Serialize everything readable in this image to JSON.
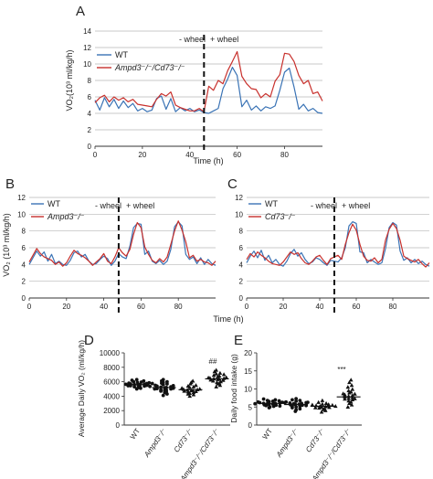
{
  "panel_letters": [
    "A",
    "B",
    "C",
    "D",
    "E"
  ],
  "colors": {
    "wt": "#3a73b5",
    "ko": "#c8302c",
    "grid": "#b8b8b8",
    "axis": "#333333",
    "dot": "#111111"
  },
  "chart_data": [
    {
      "type": "line",
      "panel": "A",
      "xlabel": "Time (h)",
      "ylabel": "VO₂(10³ ml/kg/h)",
      "xlim": [
        0,
        96
      ],
      "ylim": [
        0,
        14
      ],
      "xticks": [
        "0",
        "20",
        "40",
        "60",
        "80"
      ],
      "yticks": [
        "0",
        "2",
        "4",
        "6",
        "8",
        "10",
        "12",
        "14"
      ],
      "grid": "horizontal",
      "legend_position": "top-left",
      "annotations": {
        "left": "- wheel",
        "right": "+ wheel",
        "divider_x": 46
      },
      "series": [
        {
          "name": "WT",
          "color": "#3a73b5",
          "x": [
            0,
            2,
            4,
            6,
            8,
            10,
            12,
            14,
            16,
            18,
            20,
            22,
            24,
            26,
            28,
            30,
            32,
            34,
            36,
            38,
            40,
            42,
            44,
            46,
            48,
            50,
            52,
            54,
            56,
            58,
            60,
            62,
            64,
            66,
            68,
            70,
            72,
            74,
            76,
            78,
            80,
            82,
            84,
            86,
            88,
            90,
            92,
            94,
            96
          ],
          "values": [
            5.6,
            4.4,
            5.9,
            4.8,
            5.7,
            4.6,
            5.5,
            4.7,
            5.2,
            4.3,
            4.6,
            4.2,
            4.4,
            5.8,
            6.1,
            4.5,
            5.8,
            4.2,
            4.7,
            4.3,
            4.6,
            4.2,
            4.4,
            4.1,
            4.0,
            4.3,
            4.6,
            7.0,
            8.2,
            9.6,
            8.6,
            4.8,
            5.6,
            4.4,
            4.9,
            4.3,
            4.8,
            4.6,
            4.9,
            6.8,
            9.0,
            9.5,
            7.2,
            4.5,
            5.1,
            4.3,
            4.6,
            4.1,
            4.0
          ]
        },
        {
          "name": "Ampd3⁻/⁻/Cd73⁻/⁻",
          "color": "#c8302c",
          "x": [
            0,
            2,
            4,
            6,
            8,
            10,
            12,
            14,
            16,
            18,
            20,
            22,
            24,
            26,
            28,
            30,
            32,
            34,
            36,
            38,
            40,
            42,
            44,
            46,
            48,
            50,
            52,
            54,
            56,
            58,
            60,
            62,
            64,
            66,
            68,
            70,
            72,
            74,
            76,
            78,
            80,
            82,
            84,
            86,
            88,
            90,
            92,
            94,
            96
          ],
          "values": [
            5.3,
            5.9,
            6.2,
            5.4,
            6.0,
            5.6,
            5.9,
            5.4,
            5.7,
            5.1,
            5.0,
            4.9,
            4.8,
            5.7,
            6.4,
            6.1,
            6.6,
            5.0,
            4.7,
            4.5,
            4.3,
            4.3,
            4.6,
            4.2,
            7.3,
            6.8,
            8.0,
            7.6,
            9.2,
            10.3,
            11.5,
            8.5,
            7.6,
            7.0,
            6.9,
            5.9,
            6.4,
            6.0,
            7.9,
            8.7,
            11.3,
            11.2,
            10.3,
            8.6,
            7.6,
            8.0,
            6.4,
            6.6,
            5.5
          ]
        }
      ]
    },
    {
      "type": "line",
      "panel": "B",
      "xlabel": "Time (h)",
      "ylabel": "VO₂ (10³ ml/kg/h)",
      "xlim": [
        0,
        100
      ],
      "ylim": [
        0,
        12
      ],
      "xticks": [
        "0",
        "20",
        "40",
        "60",
        "80"
      ],
      "yticks": [
        "0",
        "2",
        "4",
        "6",
        "8",
        "10",
        "12"
      ],
      "grid": "horizontal",
      "legend_position": "top-left",
      "annotations": {
        "left": "- wheel",
        "right": "+ wheel",
        "divider_x": 48
      },
      "series": [
        {
          "name": "WT",
          "color": "#3a73b5",
          "x": [
            0,
            2,
            4,
            6,
            8,
            10,
            12,
            14,
            16,
            18,
            20,
            22,
            24,
            26,
            28,
            30,
            32,
            34,
            36,
            38,
            40,
            42,
            44,
            46,
            48,
            50,
            52,
            54,
            56,
            58,
            60,
            62,
            64,
            66,
            68,
            70,
            72,
            74,
            76,
            78,
            80,
            82,
            84,
            86,
            88,
            90,
            92,
            94,
            96,
            98,
            100
          ],
          "values": [
            4.0,
            4.8,
            5.6,
            5.0,
            5.5,
            4.4,
            5.2,
            4.1,
            4.4,
            4.0,
            3.9,
            4.5,
            5.4,
            5.6,
            4.9,
            5.2,
            4.4,
            4.0,
            4.1,
            4.6,
            5.0,
            4.7,
            3.9,
            4.4,
            5.3,
            4.9,
            4.7,
            6.2,
            8.4,
            8.9,
            8.8,
            5.2,
            5.6,
            4.4,
            4.1,
            4.5,
            4.0,
            4.4,
            5.8,
            8.5,
            9.1,
            8.6,
            5.2,
            4.6,
            4.9,
            4.1,
            4.8,
            4.0,
            4.6,
            4.1,
            3.9
          ]
        },
        {
          "name": "Ampd3⁻/⁻",
          "color": "#c8302c",
          "x": [
            0,
            2,
            4,
            6,
            8,
            10,
            12,
            14,
            16,
            18,
            20,
            22,
            24,
            26,
            28,
            30,
            32,
            34,
            36,
            38,
            40,
            42,
            44,
            46,
            48,
            50,
            52,
            54,
            56,
            58,
            60,
            62,
            64,
            66,
            68,
            70,
            72,
            74,
            76,
            78,
            80,
            82,
            84,
            86,
            88,
            90,
            92,
            94,
            96,
            98,
            100
          ],
          "values": [
            4.3,
            5.1,
            5.9,
            5.3,
            4.9,
            4.7,
            4.5,
            4.0,
            4.3,
            3.8,
            4.2,
            5.0,
            5.7,
            5.3,
            5.1,
            4.8,
            4.4,
            3.9,
            4.3,
            4.7,
            5.3,
            4.4,
            4.1,
            4.9,
            6.0,
            5.4,
            5.0,
            5.8,
            7.6,
            9.0,
            8.4,
            6.1,
            5.2,
            4.5,
            4.2,
            4.7,
            4.3,
            4.9,
            6.4,
            8.0,
            9.2,
            8.1,
            6.7,
            4.8,
            5.1,
            4.4,
            4.6,
            4.3,
            4.2,
            3.9,
            4.4
          ]
        }
      ]
    },
    {
      "type": "line",
      "panel": "C",
      "xlabel": "Time (h)",
      "ylabel": "",
      "xlim": [
        0,
        100
      ],
      "ylim": [
        0,
        12
      ],
      "xticks": [
        "0",
        "20",
        "40",
        "60",
        "80"
      ],
      "yticks": [
        "0",
        "2",
        "4",
        "6",
        "8",
        "10",
        "12"
      ],
      "grid": "horizontal",
      "legend_position": "top-left",
      "annotations": {
        "left": "- wheel",
        "right": "+ wheel",
        "divider_x": 48
      },
      "series": [
        {
          "name": "WT",
          "color": "#3a73b5",
          "x": [
            0,
            2,
            4,
            6,
            8,
            10,
            12,
            14,
            16,
            18,
            20,
            22,
            24,
            26,
            28,
            30,
            32,
            34,
            36,
            38,
            40,
            42,
            44,
            46,
            48,
            50,
            52,
            54,
            56,
            58,
            60,
            62,
            64,
            66,
            68,
            70,
            72,
            74,
            76,
            78,
            80,
            82,
            84,
            86,
            88,
            90,
            92,
            94,
            96,
            98,
            100
          ],
          "values": [
            4.2,
            5.0,
            5.6,
            4.8,
            5.7,
            4.5,
            5.1,
            4.2,
            4.6,
            4.0,
            3.8,
            4.4,
            5.3,
            5.8,
            5.0,
            5.4,
            4.6,
            4.1,
            4.3,
            4.8,
            4.6,
            4.2,
            3.9,
            4.5,
            4.4,
            4.3,
            4.8,
            6.0,
            8.6,
            9.1,
            8.9,
            5.5,
            5.4,
            4.2,
            4.6,
            4.3,
            4.0,
            4.2,
            5.9,
            8.4,
            9.0,
            8.7,
            5.6,
            4.5,
            4.8,
            4.2,
            4.6,
            4.1,
            4.4,
            4.0,
            3.8
          ]
        },
        {
          "name": "Cd73⁻/⁻",
          "color": "#c8302c",
          "x": [
            0,
            2,
            4,
            6,
            8,
            10,
            12,
            14,
            16,
            18,
            20,
            22,
            24,
            26,
            28,
            30,
            32,
            34,
            36,
            38,
            40,
            42,
            44,
            46,
            48,
            50,
            52,
            54,
            56,
            58,
            60,
            62,
            64,
            66,
            68,
            70,
            72,
            74,
            76,
            78,
            80,
            82,
            84,
            86,
            88,
            90,
            92,
            94,
            96,
            98,
            100
          ],
          "values": [
            4.6,
            5.3,
            4.9,
            5.5,
            5.1,
            4.8,
            4.4,
            4.1,
            4.0,
            3.9,
            4.3,
            4.9,
            5.5,
            5.2,
            5.4,
            4.7,
            4.2,
            4.0,
            4.4,
            4.9,
            5.1,
            4.5,
            4.0,
            4.7,
            4.9,
            5.1,
            4.6,
            6.4,
            7.8,
            8.8,
            8.1,
            6.4,
            5.0,
            4.5,
            4.4,
            4.8,
            4.2,
            4.6,
            6.9,
            8.2,
            8.9,
            8.3,
            6.9,
            5.0,
            4.7,
            4.5,
            4.3,
            4.6,
            4.1,
            3.7,
            4.2
          ]
        }
      ]
    },
    {
      "type": "scatter",
      "panel": "D",
      "ylabel": "Average Daily VO₂ (ml/kg/h)",
      "ylim": [
        0,
        10000
      ],
      "yticks": [
        "0",
        "2000",
        "4000",
        "6000",
        "8000",
        "10000"
      ],
      "categories": [
        "WT",
        "Ampd3⁻/⁻",
        "Cd73⁻/⁻",
        "Ampd3⁻/⁻/Cd73⁻/⁻"
      ],
      "means": [
        5600,
        5200,
        4900,
        6400
      ],
      "markers": [
        "circle",
        "circle",
        "triangle",
        "triangle"
      ],
      "significance": [
        "",
        "",
        "",
        "##"
      ],
      "series": [
        {
          "category": "WT",
          "values": [
            5000,
            5100,
            5200,
            5300,
            5300,
            5400,
            5450,
            5500,
            5550,
            5600,
            5600,
            5650,
            5700,
            5750,
            5800,
            5850,
            5900,
            5950,
            6000,
            6100,
            6200,
            6300,
            5450,
            5650,
            5750,
            5350
          ]
        },
        {
          "category": "Ampd3⁻/⁻",
          "values": [
            4100,
            4300,
            4500,
            4600,
            4700,
            4800,
            4850,
            4900,
            5000,
            5050,
            5100,
            5150,
            5200,
            5250,
            5300,
            5400,
            5450,
            5500,
            5600,
            5700,
            5800,
            5900,
            6000,
            6100,
            6300,
            5000
          ]
        },
        {
          "category": "Cd73⁻/⁻",
          "values": [
            4000,
            4200,
            4300,
            4400,
            4500,
            4600,
            4650,
            4700,
            4750,
            4800,
            4850,
            4900,
            4950,
            5000,
            5100,
            5200,
            5300,
            5400,
            5500,
            5700,
            5900,
            6100
          ]
        },
        {
          "category": "Ampd3⁻/⁻/Cd73⁻/⁻",
          "values": [
            5300,
            5500,
            5700,
            5800,
            5900,
            6000,
            6100,
            6200,
            6300,
            6350,
            6400,
            6450,
            6500,
            6600,
            6700,
            6800,
            6900,
            7000,
            7100,
            7200,
            7400,
            7600,
            6250,
            6550
          ]
        }
      ]
    },
    {
      "type": "scatter",
      "panel": "E",
      "ylabel": "Daily food intake (g)",
      "ylim": [
        0,
        20
      ],
      "yticks": [
        "0",
        "5",
        "10",
        "15",
        "20"
      ],
      "categories": [
        "WT",
        "Ampd3⁻/⁻",
        "Cd73⁻/⁻",
        "Ampd3⁻/⁻/Cd73⁻/⁻"
      ],
      "means": [
        6.0,
        5.7,
        5.2,
        7.8
      ],
      "markers": [
        "circle",
        "circle",
        "triangle",
        "triangle"
      ],
      "significance": [
        "",
        "",
        "",
        "***"
      ],
      "series": [
        {
          "category": "WT",
          "values": [
            4.8,
            5.0,
            5.2,
            5.4,
            5.5,
            5.6,
            5.7,
            5.8,
            5.9,
            6.0,
            6.0,
            6.1,
            6.2,
            6.3,
            6.4,
            6.5,
            6.6,
            6.8,
            7.0,
            7.2,
            5.3,
            6.2,
            6.7,
            5.9
          ]
        },
        {
          "category": "Ampd3⁻/⁻",
          "values": [
            3.8,
            4.2,
            4.5,
            4.8,
            5.0,
            5.2,
            5.3,
            5.5,
            5.6,
            5.7,
            5.8,
            5.9,
            6.0,
            6.1,
            6.2,
            6.4,
            6.6,
            6.8,
            7.0,
            7.3,
            5.4,
            6.3
          ]
        },
        {
          "category": "Cd73⁻/⁻",
          "values": [
            3.6,
            4.0,
            4.3,
            4.5,
            4.7,
            4.9,
            5.0,
            5.1,
            5.2,
            5.3,
            5.4,
            5.5,
            5.6,
            5.8,
            6.0,
            6.3,
            6.8,
            5.2,
            4.8,
            5.7
          ]
        },
        {
          "category": "Ampd3⁻/⁻/Cd73⁻/⁻",
          "values": [
            5.0,
            5.6,
            6.0,
            6.4,
            6.7,
            7.0,
            7.2,
            7.4,
            7.6,
            7.8,
            8.0,
            8.2,
            8.4,
            8.6,
            8.9,
            9.2,
            9.5,
            9.9,
            10.5,
            11.0,
            11.8,
            12.5,
            7.3,
            8.7
          ]
        }
      ]
    }
  ]
}
